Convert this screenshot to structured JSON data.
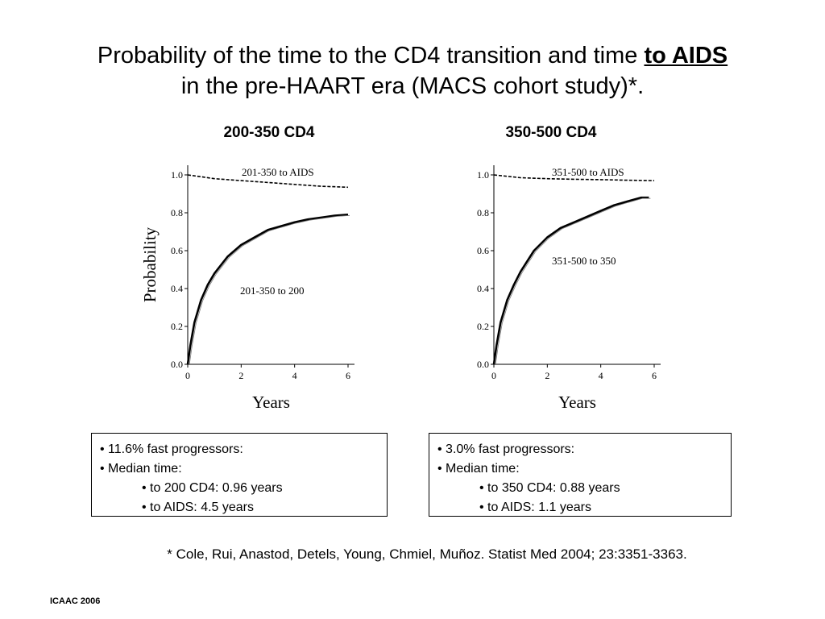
{
  "title": {
    "line1_prefix": "Probability of the time to the CD4 transition and time ",
    "line1_emph": "to AIDS",
    "line2": "in the pre-HAART era (MACS cohort study)*."
  },
  "chart_data": [
    {
      "type": "line",
      "title": "200-350 CD4",
      "xlabel": "Years",
      "ylabel": "Probability",
      "xlim": [
        0,
        6
      ],
      "ylim": [
        0,
        1
      ],
      "xticks": [
        "0",
        "2",
        "4",
        "6"
      ],
      "yticks": [
        "0.0",
        "0.2",
        "0.4",
        "0.6",
        "0.8",
        "1.0"
      ],
      "series": [
        {
          "name": "201-350 to AIDS",
          "style": "dashed",
          "x": [
            0,
            0.5,
            1,
            2,
            3,
            4,
            5,
            6
          ],
          "y": [
            1.0,
            0.99,
            0.98,
            0.97,
            0.96,
            0.95,
            0.94,
            0.935
          ]
        },
        {
          "name": "201-350 to 200",
          "style": "solid",
          "x": [
            0,
            0.1,
            0.25,
            0.5,
            0.75,
            1,
            1.5,
            2,
            2.5,
            3,
            3.5,
            4,
            4.5,
            5,
            5.5,
            6
          ],
          "y": [
            0,
            0.1,
            0.22,
            0.34,
            0.42,
            0.48,
            0.57,
            0.63,
            0.67,
            0.71,
            0.73,
            0.75,
            0.765,
            0.775,
            0.785,
            0.79
          ]
        }
      ]
    },
    {
      "type": "line",
      "title": "350-500 CD4",
      "xlabel": "Years",
      "ylabel": "",
      "xlim": [
        0,
        6
      ],
      "ylim": [
        0,
        1
      ],
      "xticks": [
        "0",
        "2",
        "4",
        "6"
      ],
      "yticks": [
        "0.0",
        "0.2",
        "0.4",
        "0.6",
        "0.8",
        "1.0"
      ],
      "series": [
        {
          "name": "351-500 to AIDS",
          "style": "dashed",
          "x": [
            0,
            1,
            2,
            3,
            4,
            5,
            6
          ],
          "y": [
            1.0,
            0.985,
            0.98,
            0.977,
            0.975,
            0.972,
            0.97
          ]
        },
        {
          "name": "351-500 to 350",
          "style": "solid",
          "x": [
            0,
            0.1,
            0.25,
            0.5,
            0.75,
            1,
            1.5,
            2,
            2.5,
            3,
            3.5,
            4,
            4.5,
            5,
            5.5,
            5.8
          ],
          "y": [
            0,
            0.1,
            0.22,
            0.34,
            0.42,
            0.49,
            0.6,
            0.67,
            0.72,
            0.75,
            0.78,
            0.81,
            0.84,
            0.86,
            0.88,
            0.88
          ]
        }
      ]
    }
  ],
  "notes": [
    {
      "items": [
        "• 11.6% fast progressors:",
        "• Median time:"
      ],
      "sub": [
        "• to 200 CD4: 0.96 years",
        "• to AIDS: 4.5 years"
      ]
    },
    {
      "items": [
        "• 3.0% fast progressors:",
        "• Median time:"
      ],
      "sub": [
        "• to 350 CD4: 0.88 years",
        "• to AIDS: 1.1 years"
      ]
    }
  ],
  "citation": "* Cole, Rui, Anastod, Detels, Young, Chmiel, Muñoz. Statist Med 2004; 23:3351-3363.",
  "footer": "ICAAC 2006"
}
